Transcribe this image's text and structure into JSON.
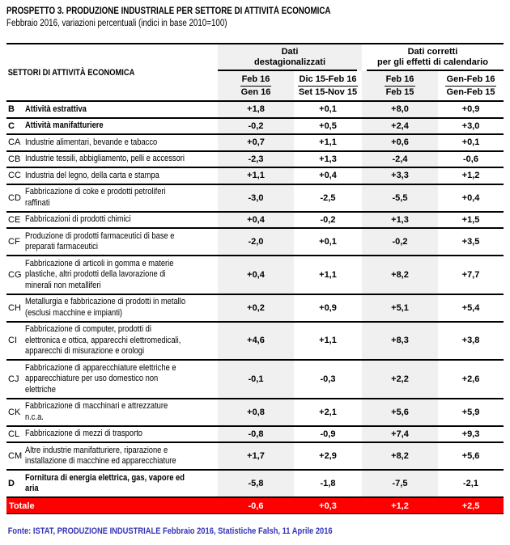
{
  "title": "PROSPETTO 3. PRODUZIONE INDUSTRIALE PER SETTORE DI ATTIVITÀ ECONOMICA",
  "subtitle": "Febbraio 2016, variazioni percentuali (indici in base 2010=100)",
  "table": {
    "col_header": "SETTORI DI ATTIVITÀ ECONOMICA",
    "groups": [
      {
        "label": "Dati\ndestagionalizzati"
      },
      {
        "label": "Dati corretti\nper gli effetti di calendario"
      }
    ],
    "subcols": [
      {
        "top": "Feb 16",
        "bottom": "Gen 16",
        "shaded": true
      },
      {
        "top": "Dic 15-Feb 16",
        "bottom": "Set 15-Nov 15",
        "shaded": false
      },
      {
        "top": "Feb 16",
        "bottom": "Feb 15",
        "shaded": true
      },
      {
        "top": "Gen-Feb 16",
        "bottom": "Gen-Feb 15",
        "shaded": false
      }
    ],
    "rows": [
      {
        "code": "B",
        "bold": true,
        "label": "Attività estrattiva",
        "values": [
          "+1,8",
          "+0,1",
          "+8,0",
          "+0,9"
        ]
      },
      {
        "code": "C",
        "bold": true,
        "label": "Attività manifatturiere",
        "values": [
          "-0,2",
          "+0,5",
          "+2,4",
          "+3,0"
        ]
      },
      {
        "code": "CA",
        "bold": false,
        "label": "Industrie alimentari, bevande e tabacco",
        "values": [
          "+0,7",
          "+1,1",
          "+0,6",
          "+0,1"
        ]
      },
      {
        "code": "CB",
        "bold": false,
        "label": "Industrie tessili, abbigliamento, pelli e accessori",
        "values": [
          "-2,3",
          "+1,3",
          "-2,4",
          "-0,6"
        ]
      },
      {
        "code": "CC",
        "bold": false,
        "label": "Industria del legno, della carta e stampa",
        "values": [
          "+1,1",
          "+0,4",
          "+3,3",
          "+1,2"
        ]
      },
      {
        "code": "CD",
        "bold": false,
        "label": "Fabbricazione di coke e prodotti petroliferi\nraffinati",
        "values": [
          "-3,0",
          "-2,5",
          "-5,5",
          "+0,4"
        ]
      },
      {
        "code": "CE",
        "bold": false,
        "label": "Fabbricazioni di prodotti chimici",
        "values": [
          "+0,4",
          "-0,2",
          "+1,3",
          "+1,5"
        ]
      },
      {
        "code": "CF",
        "bold": false,
        "label": "Produzione di prodotti farmaceutici di base e\npreparati farmaceutici",
        "values": [
          "-2,0",
          "+0,1",
          "-0,2",
          "+3,5"
        ]
      },
      {
        "code": "CG",
        "bold": false,
        "label": "Fabbricazione di articoli in gomma e materie\nplastiche, altri prodotti della lavorazione di\nminerali non metalliferi",
        "values": [
          "+0,4",
          "+1,1",
          "+8,2",
          "+7,7"
        ]
      },
      {
        "code": "CH",
        "bold": false,
        "label": "Metallurgia e fabbricazione di prodotti in metallo\n(esclusi macchine e impianti)",
        "values": [
          "+0,2",
          "+0,9",
          "+5,1",
          "+5,4"
        ]
      },
      {
        "code": "CI",
        "bold": false,
        "label": "Fabbricazione di computer, prodotti di\nelettronica e ottica, apparecchi elettromedicali,\napparecchi di misurazione e orologi",
        "values": [
          "+4,6",
          "+1,1",
          "+8,3",
          "+3,8"
        ]
      },
      {
        "code": "CJ",
        "bold": false,
        "label": "Fabbricazione di apparecchiature elettriche e\napparecchiature per uso domestico non\nelettriche",
        "values": [
          "-0,1",
          "-0,3",
          "+2,2",
          "+2,6"
        ]
      },
      {
        "code": "CK",
        "bold": false,
        "label": "Fabbricazione di macchinari e attrezzature\nn.c.a.",
        "values": [
          "+0,8",
          "+2,1",
          "+5,6",
          "+5,9"
        ]
      },
      {
        "code": "CL",
        "bold": false,
        "label": "Fabbricazione di mezzi di trasporto",
        "values": [
          "-0,8",
          "-0,9",
          "+7,4",
          "+9,3"
        ]
      },
      {
        "code": "CM",
        "bold": false,
        "label": "Altre industrie manifatturiere, riparazione e\ninstallazione di macchine ed apparecchiature",
        "values": [
          "+1,7",
          "+2,9",
          "+8,2",
          "+5,6"
        ]
      },
      {
        "code": "D",
        "bold": true,
        "label": "Fornitura di energia elettrica, gas, vapore ed\naria",
        "values": [
          "-5,8",
          "-1,8",
          "-7,5",
          "-2,1"
        ]
      }
    ],
    "total": {
      "label": "Totale",
      "values": [
        "-0,6",
        "+0,3",
        "+1,2",
        "+2,5"
      ]
    }
  },
  "footer": {
    "text": "Fonte: ISTAT, PRODUZIONE INDUSTRIALE Febbraio 2016, Statistiche Falsh, 11 Aprile 2016"
  },
  "colors": {
    "total_row_bg": "#FF0000",
    "total_row_fg": "#FFFFFF",
    "cell_shade": "#F0F0F0",
    "footer_text": "#3333B8",
    "border": "#000000"
  }
}
